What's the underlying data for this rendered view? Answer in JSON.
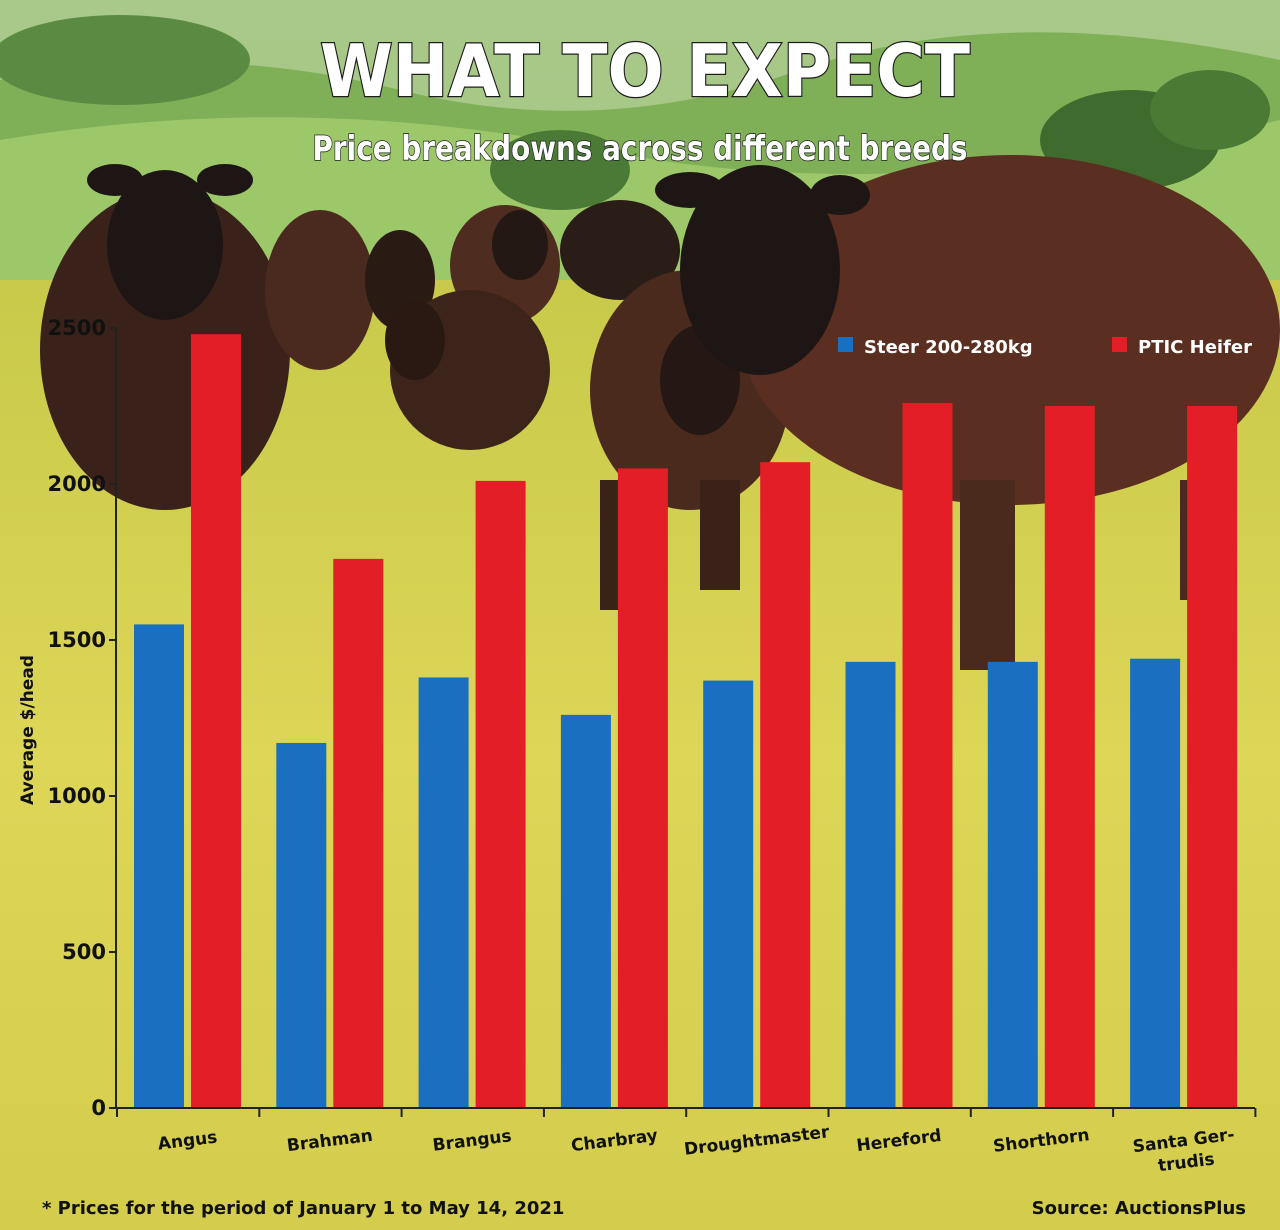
{
  "title": "WHAT TO EXPECT",
  "subtitle": "Price breakdowns across different breeds",
  "footnote": "* Prices for the period of January 1 to May 14, 2021",
  "source": "Source: AuctionsPlus",
  "colors": {
    "steer": "#1a6fc0",
    "heifer": "#e41e26",
    "sky": "#b8d49a",
    "hills": "#8dbf63",
    "grass": "#d9d44a",
    "cattle": "#2b1a14"
  },
  "chart_data": {
    "type": "bar",
    "title": "WHAT TO EXPECT",
    "subtitle": "Price breakdowns across different breeds",
    "xlabel": "",
    "ylabel": "Average $/head",
    "ylim": [
      0,
      2500
    ],
    "yticks": [
      0,
      500,
      1000,
      1500,
      2000,
      2500
    ],
    "grid": false,
    "legend_position": "top-right",
    "categories": [
      "Angus",
      "Brahman",
      "Brangus",
      "Charbray",
      "Droughtmaster",
      "Hereford",
      "Shorthorn",
      "Santa Ger-trudis"
    ],
    "category_lines": [
      [
        "Angus"
      ],
      [
        "Brahman"
      ],
      [
        "Brangus"
      ],
      [
        "Charbray"
      ],
      [
        "Droughtmaster"
      ],
      [
        "Hereford"
      ],
      [
        "Shorthorn"
      ],
      [
        "Santa Ger-",
        "trudis"
      ]
    ],
    "series": [
      {
        "name": "Steer 200-280kg",
        "color": "#1a6fc0",
        "values": [
          1550,
          1170,
          1380,
          1260,
          1370,
          1430,
          1430,
          1440
        ]
      },
      {
        "name": "PTIC Heifer",
        "color": "#e41e26",
        "values": [
          2480,
          1760,
          2010,
          2050,
          2070,
          2260,
          2250,
          2250
        ]
      }
    ]
  }
}
